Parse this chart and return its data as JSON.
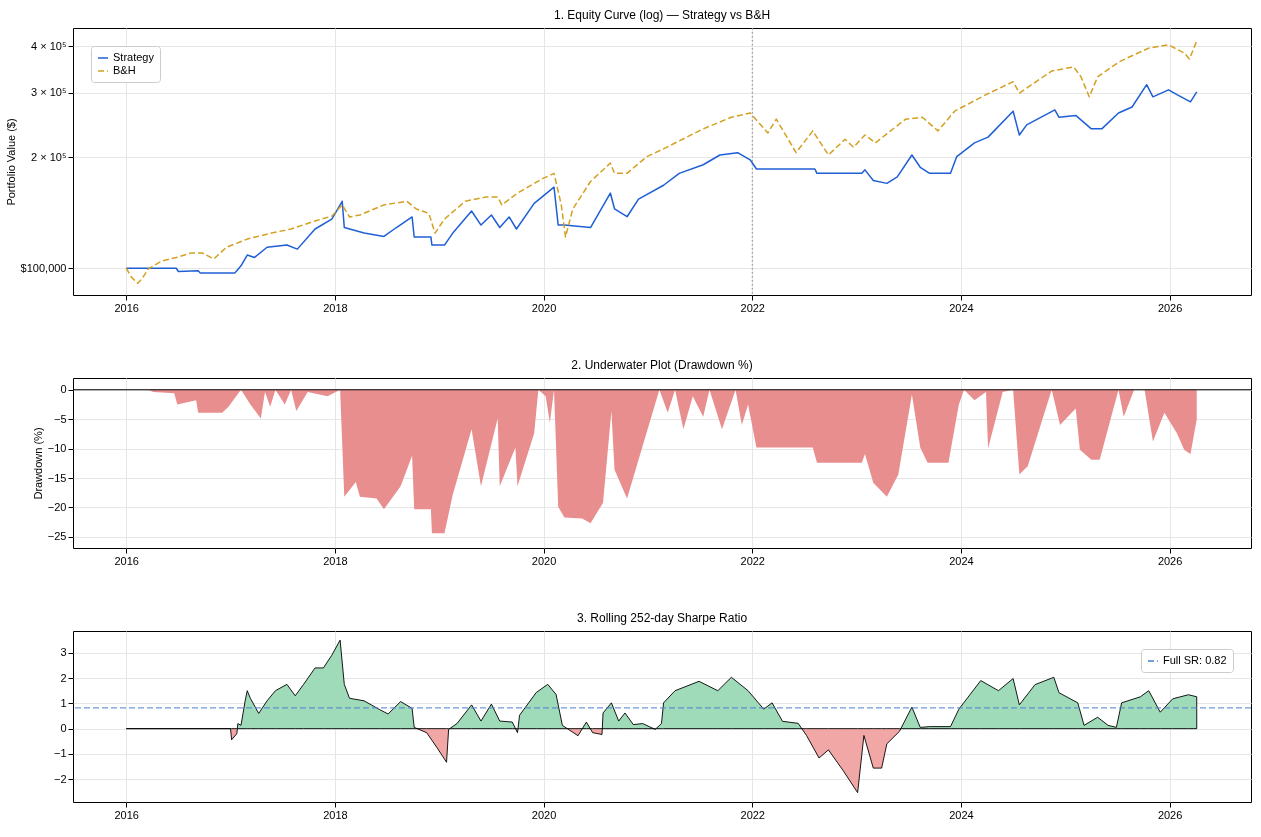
{
  "chart_data": [
    {
      "type": "line",
      "title": "1. Equity Curve (log) — Strategy vs B&H",
      "ylabel": "Portfolio Value ($)",
      "log": "y",
      "xlim": [
        2015.49,
        2026.78
      ],
      "xticks": [
        2016,
        2018,
        2020,
        2022,
        2024,
        2026
      ],
      "ylim": [
        84600,
        449000
      ],
      "yticks": [
        {
          "value": 100000,
          "label": "$100,000"
        },
        {
          "value": 200000,
          "label": "2 × 10⁵"
        },
        {
          "value": 300000,
          "label": "3 × 10⁵"
        },
        {
          "value": 400000,
          "label": "4 × 10⁵"
        }
      ],
      "grid": true,
      "legend": "top left",
      "ref_lines": [
        {
          "axis": "x",
          "value": 2022,
          "color": "#888888",
          "line_style": "dotted"
        }
      ],
      "series": [
        {
          "name": "Strategy",
          "color": "#1f5fd6",
          "line_style": "solid",
          "x": [
            2016.0,
            2016.48,
            2016.5,
            2016.69,
            2016.71,
            2017.04,
            2017.06,
            2017.1,
            2017.16,
            2017.23,
            2017.35,
            2017.54,
            2017.64,
            2017.81,
            2017.97,
            2018.07,
            2018.09,
            2018.28,
            2018.47,
            2018.59,
            2018.74,
            2018.76,
            2018.92,
            2018.93,
            2019.05,
            2019.13,
            2019.31,
            2019.4,
            2019.5,
            2019.58,
            2019.67,
            2019.74,
            2019.91,
            2020.1,
            2020.14,
            2020.2,
            2020.45,
            2020.64,
            2020.68,
            2020.8,
            2020.91,
            2021.15,
            2021.3,
            2021.53,
            2021.69,
            2021.86,
            2021.98,
            2022.04,
            2022.6,
            2022.62,
            2023.05,
            2023.08,
            2023.16,
            2023.29,
            2023.39,
            2023.53,
            2023.61,
            2023.7,
            2023.9,
            2023.96,
            2024.13,
            2024.26,
            2024.5,
            2024.56,
            2024.63,
            2024.9,
            2024.94,
            2025.1,
            2025.25,
            2025.35,
            2025.51,
            2025.64,
            2025.78,
            2025.84,
            2025.99,
            2026.07,
            2026.2,
            2026.26
          ],
          "values": [
            100000,
            100000,
            98000,
            98500,
            97000,
            97000,
            98500,
            101500,
            108600,
            107000,
            114000,
            115600,
            112700,
            127800,
            136000,
            152000,
            129000,
            124600,
            122000,
            129000,
            137800,
            121600,
            121600,
            115600,
            115600,
            124600,
            143000,
            131000,
            139500,
            129000,
            137800,
            127800,
            150000,
            166000,
            131000,
            131000,
            129000,
            160000,
            145000,
            138000,
            154000,
            168000,
            181000,
            191000,
            203000,
            206000,
            197000,
            186000,
            186000,
            181000,
            181000,
            185000,
            173000,
            170000,
            177000,
            203000,
            188000,
            181000,
            181000,
            201000,
            219000,
            227000,
            267000,
            230000,
            245000,
            269000,
            257000,
            260000,
            239000,
            239000,
            264000,
            274000,
            315000,
            292000,
            305000,
            296000,
            283000,
            301000
          ]
        },
        {
          "name": "B&H",
          "color": "#d4a020",
          "line_style": "dashed",
          "x": [
            2016.0,
            2016.05,
            2016.11,
            2016.15,
            2016.21,
            2016.34,
            2016.5,
            2016.62,
            2016.73,
            2016.84,
            2016.96,
            2017.16,
            2017.39,
            2017.58,
            2017.81,
            2017.97,
            2018.07,
            2018.14,
            2018.24,
            2018.47,
            2018.69,
            2018.78,
            2018.9,
            2018.96,
            2019.05,
            2019.25,
            2019.44,
            2019.56,
            2019.6,
            2019.75,
            2019.98,
            2020.1,
            2020.17,
            2020.21,
            2020.28,
            2020.45,
            2020.64,
            2020.68,
            2020.8,
            2020.99,
            2021.15,
            2021.53,
            2021.8,
            2021.98,
            2022.15,
            2022.23,
            2022.42,
            2022.58,
            2022.73,
            2022.89,
            2022.97,
            2023.08,
            2023.18,
            2023.47,
            2023.63,
            2023.78,
            2023.94,
            2024.24,
            2024.5,
            2024.56,
            2024.87,
            2025.08,
            2025.15,
            2025.23,
            2025.31,
            2025.52,
            2025.8,
            2025.99,
            2026.14,
            2026.19,
            2026.26
          ],
          "values": [
            100000,
            94600,
            91000,
            93500,
            99500,
            104600,
            107300,
            110000,
            110000,
            106000,
            114000,
            120000,
            124600,
            127800,
            134400,
            138500,
            148600,
            137800,
            139500,
            148600,
            152000,
            144800,
            141000,
            124600,
            136000,
            152000,
            156000,
            156000,
            148600,
            160000,
            174500,
            181000,
            148600,
            121600,
            144800,
            172000,
            193000,
            181000,
            181000,
            201000,
            211000,
            239000,
            257000,
            264000,
            233000,
            254000,
            206000,
            236000,
            203000,
            224000,
            213000,
            230000,
            219000,
            254000,
            257000,
            236000,
            267000,
            296000,
            321000,
            299000,
            343000,
            352000,
            331000,
            292000,
            331000,
            364000,
            396000,
            404000,
            384000,
            370000,
            414000
          ]
        }
      ]
    },
    {
      "type": "area",
      "title": "2. Underwater Plot (Drawdown %)",
      "ylabel": "Drawdown (%)",
      "xlim": [
        2015.49,
        2026.78
      ],
      "xticks": [
        2016,
        2018,
        2020,
        2022,
        2024,
        2026
      ],
      "ylim": [
        -26.9,
        2.0
      ],
      "yticks": [
        0,
        {
          "value": -5,
          "label": "−5"
        },
        {
          "value": -10,
          "label": "−10"
        },
        {
          "value": -15,
          "label": "−15"
        },
        {
          "value": -20,
          "label": "−20"
        },
        {
          "value": -25,
          "label": "−25"
        }
      ],
      "grid": true,
      "ref_lines": [
        {
          "axis": "y",
          "value": 0,
          "color": "#000000",
          "line_style": "solid"
        }
      ],
      "series": [
        {
          "color": "#e98e8e",
          "x": [
            2016.0,
            2016.21,
            2016.26,
            2016.46,
            2016.49,
            2016.67,
            2016.69,
            2016.92,
            2016.98,
            2017.1,
            2017.19,
            2017.29,
            2017.33,
            2017.38,
            2017.43,
            2017.52,
            2017.58,
            2017.63,
            2017.74,
            2017.93,
            2018.05,
            2018.09,
            2018.2,
            2018.24,
            2018.4,
            2018.47,
            2018.63,
            2018.74,
            2018.76,
            2018.92,
            2018.93,
            2019.05,
            2019.13,
            2019.31,
            2019.4,
            2019.56,
            2019.58,
            2019.73,
            2019.75,
            2019.91,
            2019.95,
            2020.02,
            2020.06,
            2020.1,
            2020.14,
            2020.2,
            2020.37,
            2020.45,
            2020.57,
            2020.65,
            2020.68,
            2020.8,
            2020.95,
            2021.11,
            2021.19,
            2021.26,
            2021.34,
            2021.43,
            2021.53,
            2021.59,
            2021.71,
            2021.84,
            2021.9,
            2021.96,
            2022.04,
            2022.58,
            2022.62,
            2023.05,
            2023.08,
            2023.16,
            2023.29,
            2023.4,
            2023.53,
            2023.61,
            2023.68,
            2023.88,
            2023.98,
            2024.03,
            2024.13,
            2024.24,
            2024.26,
            2024.4,
            2024.5,
            2024.56,
            2024.64,
            2024.87,
            2024.95,
            2025.1,
            2025.14,
            2025.25,
            2025.33,
            2025.51,
            2025.56,
            2025.66,
            2025.76,
            2025.84,
            2025.95,
            2026.07,
            2026.14,
            2026.2,
            2026.26
          ],
          "values": [
            0,
            0,
            -0.4,
            -0.6,
            -2.5,
            -1.8,
            -3.9,
            -3.9,
            -2.9,
            0,
            -2.5,
            -4.9,
            -0.4,
            -2.9,
            0,
            -2.5,
            0,
            -3.6,
            -0.4,
            -1.1,
            0,
            -18.2,
            -15.7,
            -18.2,
            -18.5,
            -20.3,
            -16.4,
            -11.2,
            -20.3,
            -20.3,
            -24.4,
            -24.4,
            -17.8,
            -6.7,
            -16.4,
            -4.9,
            -16.4,
            -9.8,
            -16.4,
            -7.4,
            0,
            -1.1,
            -5.6,
            0,
            -19.9,
            -21.7,
            -21.9,
            -22.7,
            -19.2,
            -3.6,
            -13.6,
            -18.5,
            -9.5,
            0,
            -3.9,
            0,
            -6.7,
            -1.1,
            -4.6,
            0,
            -6.7,
            0,
            -6,
            -2.5,
            -9.8,
            -9.8,
            -12.4,
            -12.4,
            -10.9,
            -15.8,
            -18.2,
            -14.4,
            -0.8,
            -9.8,
            -12.4,
            -12.4,
            -2.5,
            0,
            -1.8,
            -0.4,
            -10,
            -0.4,
            0,
            -14.4,
            -13,
            0,
            -6,
            -3.2,
            -10.2,
            -11.9,
            -11.9,
            0,
            -4.6,
            0,
            0,
            -8.8,
            -3.9,
            -7.4,
            -10.2,
            -10.9,
            -5
          ]
        }
      ]
    },
    {
      "type": "area",
      "title": "3. Rolling 252-day Sharpe Ratio",
      "xlim": [
        2015.49,
        2026.78
      ],
      "xticks": [
        2016,
        2018,
        2020,
        2022,
        2024,
        2026
      ],
      "ylim": [
        -2.9,
        3.86
      ],
      "yticks": [
        {
          "value": -2,
          "label": "−2"
        },
        {
          "value": -1,
          "label": "−1"
        },
        0,
        1,
        2,
        3
      ],
      "grid": true,
      "legend": "top right",
      "ref_lines": [
        {
          "axis": "y",
          "value": 0.82,
          "label": "Full SR: 0.82",
          "color": "#4a7fd4",
          "line_style": "dashed"
        }
      ],
      "series": [
        {
          "color": "#000000",
          "x": [
            2016.0,
            2017.0,
            2017.01,
            2017.06,
            2017.07,
            2017.1,
            2017.14,
            2017.16,
            2017.19,
            2017.27,
            2017.35,
            2017.43,
            2017.54,
            2017.62,
            2017.7,
            2017.81,
            2017.89,
            2017.97,
            2018.05,
            2018.09,
            2018.14,
            2018.28,
            2018.43,
            2018.51,
            2018.63,
            2018.74,
            2018.76,
            2018.88,
            2018.98,
            2019.07,
            2019.09,
            2019.17,
            2019.31,
            2019.4,
            2019.5,
            2019.58,
            2019.7,
            2019.75,
            2019.77,
            2019.93,
            2020.04,
            2020.12,
            2020.18,
            2020.33,
            2020.41,
            2020.47,
            2020.56,
            2020.57,
            2020.65,
            2020.72,
            2020.78,
            2020.86,
            2020.95,
            2021.07,
            2021.13,
            2021.15,
            2021.26,
            2021.49,
            2021.67,
            2021.8,
            2021.96,
            2022.11,
            2022.19,
            2022.29,
            2022.44,
            2022.52,
            2022.64,
            2022.73,
            2022.87,
            2023.01,
            2023.07,
            2023.16,
            2023.24,
            2023.29,
            2023.41,
            2023.53,
            2023.61,
            2023.7,
            2023.9,
            2023.98,
            2024.19,
            2024.36,
            2024.5,
            2024.56,
            2024.71,
            2024.89,
            2024.94,
            2025.12,
            2025.18,
            2025.31,
            2025.41,
            2025.49,
            2025.54,
            2025.72,
            2025.8,
            2025.91,
            2026.03,
            2026.18,
            2026.26
          ],
          "values": [
            0,
            0,
            -0.44,
            -0.2,
            0.2,
            0.13,
            1.1,
            1.5,
            1.2,
            0.6,
            1.1,
            1.5,
            1.75,
            1.3,
            1.75,
            2.4,
            2.4,
            2.9,
            3.5,
            1.75,
            1.2,
            1.1,
            0.75,
            0.58,
            1.07,
            0.8,
            0.05,
            -0.16,
            -0.76,
            -1.33,
            -0.03,
            0.2,
            0.94,
            0.3,
            0.97,
            0.3,
            0.26,
            -0.16,
            0.53,
            1.43,
            1.75,
            1.35,
            0.13,
            -0.28,
            0.26,
            -0.16,
            -0.23,
            0.62,
            1.02,
            0.3,
            0.62,
            0.16,
            0.2,
            -0.03,
            0.2,
            1.02,
            1.5,
            1.87,
            1.5,
            2.03,
            1.5,
            0.77,
            1.02,
            0.29,
            0.21,
            -0.27,
            -1.16,
            -0.84,
            -1.65,
            -2.53,
            -0.27,
            -1.56,
            -1.56,
            -0.6,
            -0.11,
            0.85,
            0.05,
            0.08,
            0.08,
            0.77,
            1.9,
            1.5,
            1.98,
            0.94,
            1.74,
            2.03,
            1.42,
            1.02,
            0.13,
            0.45,
            0.13,
            0.05,
            1.02,
            1.26,
            1.5,
            0.65,
            1.18,
            1.34,
            1.26
          ],
          "colors": [
            "#a0dbb9",
            "#a0dbb9",
            "#f2a7a7",
            "#f2a7a7",
            "#a0dbb9",
            "#a0dbb9",
            "#a0dbb9",
            "#a0dbb9",
            "#a0dbb9",
            "#a0dbb9",
            "#a0dbb9",
            "#a0dbb9",
            "#a0dbb9",
            "#a0dbb9",
            "#a0dbb9",
            "#a0dbb9",
            "#a0dbb9",
            "#a0dbb9",
            "#a0dbb9",
            "#a0dbb9",
            "#a0dbb9",
            "#a0dbb9",
            "#a0dbb9",
            "#a0dbb9",
            "#a0dbb9",
            "#a0dbb9",
            "#a0dbb9",
            "#f2a7a7",
            "#f2a7a7",
            "#f2a7a7",
            "#f2a7a7",
            "#a0dbb9",
            "#a0dbb9",
            "#a0dbb9",
            "#a0dbb9",
            "#a0dbb9",
            "#a0dbb9",
            "#f2a7a7",
            "#a0dbb9",
            "#a0dbb9",
            "#a0dbb9",
            "#a0dbb9",
            "#a0dbb9",
            "#f2a7a7",
            "#a0dbb9",
            "#f2a7a7",
            "#f2a7a7",
            "#a0dbb9",
            "#a0dbb9",
            "#a0dbb9",
            "#a0dbb9",
            "#a0dbb9",
            "#a0dbb9",
            "#f2a7a7",
            "#a0dbb9",
            "#a0dbb9",
            "#a0dbb9",
            "#a0dbb9",
            "#a0dbb9",
            "#a0dbb9",
            "#a0dbb9",
            "#a0dbb9",
            "#a0dbb9",
            "#a0dbb9",
            "#a0dbb9",
            "#f2a7a7",
            "#f2a7a7",
            "#f2a7a7",
            "#f2a7a7",
            "#f2a7a7",
            "#f2a7a7",
            "#f2a7a7",
            "#f2a7a7",
            "#f2a7a7",
            "#f2a7a7",
            "#a0dbb9",
            "#a0dbb9",
            "#a0dbb9",
            "#a0dbb9",
            "#a0dbb9",
            "#a0dbb9",
            "#a0dbb9",
            "#a0dbb9",
            "#a0dbb9",
            "#a0dbb9",
            "#a0dbb9",
            "#a0dbb9",
            "#a0dbb9",
            "#a0dbb9",
            "#a0dbb9",
            "#a0dbb9",
            "#a0dbb9",
            "#a0dbb9",
            "#a0dbb9",
            "#a0dbb9",
            "#a0dbb9",
            "#a0dbb9",
            "#a0dbb9",
            "#a0dbb9"
          ]
        }
      ]
    }
  ]
}
